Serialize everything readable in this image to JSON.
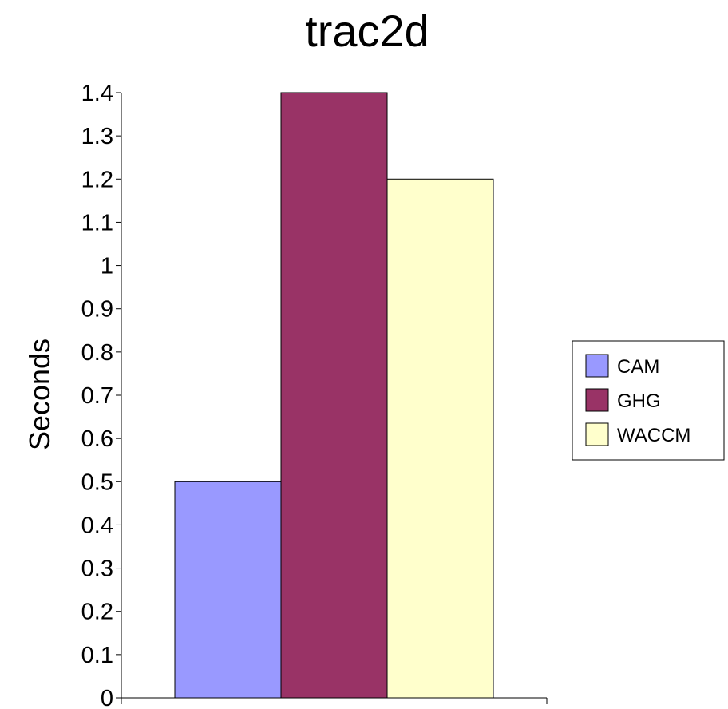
{
  "chart_data": {
    "type": "bar",
    "title": "trac2d",
    "ylabel": "Seconds",
    "xlabel": "",
    "ylim": [
      0,
      1.4
    ],
    "yticks": [
      "0",
      "0.1",
      "0.2",
      "0.3",
      "0.4",
      "0.5",
      "0.6",
      "0.7",
      "0.8",
      "0.9",
      "1",
      "1.1",
      "1.2",
      "1.3",
      "1.4"
    ],
    "grid": false,
    "legend_position": "right",
    "series": [
      {
        "name": "CAM",
        "value": 0.5,
        "color": "#9999ff"
      },
      {
        "name": "GHG",
        "value": 1.4,
        "color": "#993366"
      },
      {
        "name": "WACCM",
        "value": 1.2,
        "color": "#ffffcc"
      }
    ]
  }
}
